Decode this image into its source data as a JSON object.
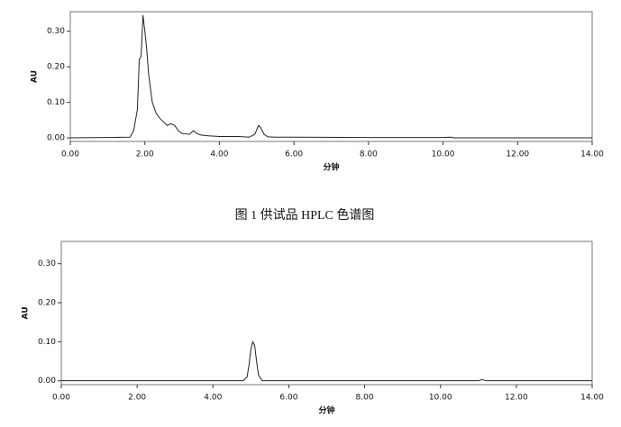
{
  "chart_data": [
    {
      "type": "line",
      "xlabel": "分钟",
      "ylabel": "AU",
      "x": [
        0,
        1.6,
        1.7,
        1.8,
        1.85,
        1.9,
        1.95,
        2.0,
        2.05,
        2.1,
        2.2,
        2.3,
        2.4,
        2.5,
        2.6,
        2.7,
        2.8,
        2.9,
        3.0,
        3.2,
        3.3,
        3.4,
        3.5,
        3.7,
        4.0,
        4.5,
        4.8,
        4.95,
        5.05,
        5.1,
        5.2,
        5.3,
        5.5,
        6,
        8,
        10,
        10.2,
        10.3,
        14
      ],
      "series": [
        {
          "color": "#222222",
          "values": [
            0,
            0.002,
            0.02,
            0.08,
            0.22,
            0.23,
            0.345,
            0.3,
            0.25,
            0.18,
            0.1,
            0.07,
            0.055,
            0.045,
            0.035,
            0.04,
            0.035,
            0.02,
            0.012,
            0.01,
            0.02,
            0.012,
            0.008,
            0.006,
            0.004,
            0.004,
            0.002,
            0.01,
            0.035,
            0.03,
            0.01,
            0.003,
            0.002,
            0.002,
            0.001,
            0.001,
            0.002,
            0,
            0
          ]
        }
      ],
      "xlim": [
        0,
        14
      ],
      "ylim": [
        -0.01,
        0.355
      ],
      "xticks": [
        {
          "value": 0,
          "label": "0.00"
        },
        {
          "value": 2,
          "label": "2.00"
        },
        {
          "value": 4,
          "label": "4.00"
        },
        {
          "value": 6,
          "label": "6.00"
        },
        {
          "value": 8,
          "label": "8.00"
        },
        {
          "value": 10,
          "label": "10.00"
        },
        {
          "value": 12,
          "label": "12.00"
        },
        {
          "value": 14,
          "label": "14.00"
        }
      ],
      "yticks": [
        {
          "value": 0,
          "label": "0.00"
        },
        {
          "value": 0.1,
          "label": "0.10"
        },
        {
          "value": 0.2,
          "label": "0.20"
        },
        {
          "value": 0.3,
          "label": "0.30"
        }
      ],
      "caption": "图 1 供试品 HPLC 色谱图"
    },
    {
      "type": "line",
      "xlabel": "分钟",
      "ylabel": "AU",
      "x": [
        0,
        4.8,
        4.9,
        4.95,
        5.0,
        5.05,
        5.1,
        5.15,
        5.2,
        5.3,
        11.0,
        11.1,
        11.2,
        14
      ],
      "series": [
        {
          "color": "#222222",
          "values": [
            0,
            0,
            0.01,
            0.04,
            0.08,
            0.1,
            0.09,
            0.05,
            0.015,
            0,
            0,
            0.003,
            0,
            0
          ]
        }
      ],
      "xlim": [
        0,
        14
      ],
      "ylim": [
        -0.01,
        0.357
      ],
      "xticks": [
        {
          "value": 0,
          "label": "0.00"
        },
        {
          "value": 2,
          "label": "2.00"
        },
        {
          "value": 4,
          "label": "4.00"
        },
        {
          "value": 6,
          "label": "6.00"
        },
        {
          "value": 8,
          "label": "8.00"
        },
        {
          "value": 10,
          "label": "10.00"
        },
        {
          "value": 12,
          "label": "12.00"
        },
        {
          "value": 14,
          "label": "14.00"
        }
      ],
      "yticks": [
        {
          "value": 0,
          "label": "0.00"
        },
        {
          "value": 0.1,
          "label": "0.10"
        },
        {
          "value": 0.2,
          "label": "0.20"
        },
        {
          "value": 0.3,
          "label": "0.30"
        }
      ]
    }
  ]
}
